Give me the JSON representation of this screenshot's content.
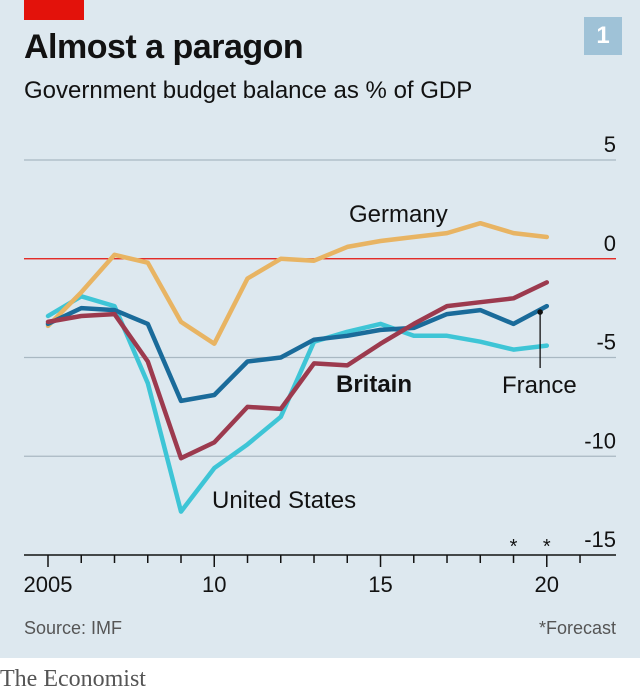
{
  "header": {
    "title": "Almost a paragon",
    "subtitle": "Government budget balance as % of GDP",
    "chart_number": "1"
  },
  "footer": {
    "source": "Source: IMF",
    "footnote": "*Forecast",
    "brand": "The Economist"
  },
  "colors": {
    "background": "#dde8ef",
    "grid": "#a9b8c2",
    "zero_line": "#e3120b",
    "germany": "#e8b463",
    "france": "#1a6b9a",
    "britain": "#9c3a4e",
    "united_states": "#3ec5d6"
  },
  "chart_data": {
    "type": "line",
    "title": "Almost a paragon",
    "subtitle": "Government budget balance as % of GDP",
    "xlabel": "",
    "ylabel": "",
    "x": [
      2005,
      2006,
      2007,
      2008,
      2009,
      2010,
      2011,
      2012,
      2013,
      2014,
      2015,
      2016,
      2017,
      2018,
      2019,
      2020
    ],
    "xlim": [
      2005,
      2021.3
    ],
    "ylim": [
      -15,
      5
    ],
    "x_ticks": [
      2005,
      2010,
      2015,
      2020
    ],
    "x_tick_labels": [
      "2005",
      "10",
      "15",
      "20"
    ],
    "y_ticks": [
      5,
      0,
      -5,
      -10,
      -15
    ],
    "y_tick_labels": [
      "5",
      "0",
      "-5",
      "-10",
      "-15"
    ],
    "forecast_markers": [
      {
        "x": 2019,
        "label": "*"
      },
      {
        "x": 2020,
        "label": "*"
      }
    ],
    "grid": true,
    "legend": "direct labels",
    "series": [
      {
        "name": "Germany",
        "key": "germany",
        "values": [
          -3.4,
          -1.7,
          0.2,
          -0.2,
          -3.2,
          -4.3,
          -1.0,
          0.0,
          -0.1,
          0.6,
          0.9,
          1.1,
          1.3,
          1.8,
          1.3,
          1.1
        ]
      },
      {
        "name": "France",
        "key": "france",
        "values": [
          -3.3,
          -2.5,
          -2.6,
          -3.3,
          -7.2,
          -6.9,
          -5.2,
          -5.0,
          -4.1,
          -3.9,
          -3.6,
          -3.5,
          -2.8,
          -2.6,
          -3.3,
          -2.4
        ]
      },
      {
        "name": "Britain",
        "key": "britain",
        "values": [
          -3.2,
          -2.9,
          -2.8,
          -5.2,
          -10.1,
          -9.3,
          -7.5,
          -7.6,
          -5.3,
          -5.4,
          -4.3,
          -3.3,
          -2.4,
          -2.2,
          -2.0,
          -1.2
        ]
      },
      {
        "name": "United States",
        "key": "united_states",
        "values": [
          -2.9,
          -1.9,
          -2.4,
          -6.3,
          -12.8,
          -10.6,
          -9.4,
          -8.0,
          -4.2,
          -3.7,
          -3.3,
          -3.9,
          -3.9,
          -4.2,
          -4.6,
          -4.4
        ]
      }
    ]
  }
}
